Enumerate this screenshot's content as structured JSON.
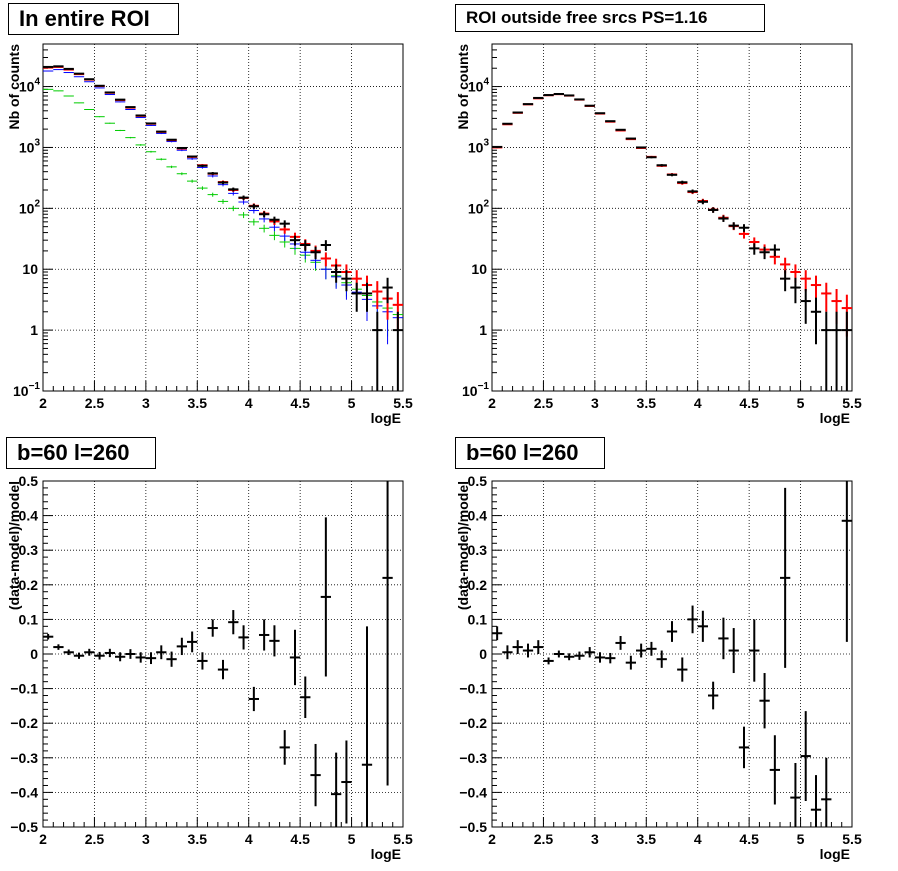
{
  "chart_data": [
    {
      "type": "scatter",
      "title": "In entire ROI",
      "xlabel": "logE",
      "ylabel": "Nb of counts",
      "xlim": [
        2,
        5.5
      ],
      "ylim": [
        0.1,
        50000
      ],
      "ylog": true,
      "grid": true,
      "xticks": [
        "2",
        "2.5",
        "3",
        "3.5",
        "4",
        "4.5",
        "5",
        "5.5"
      ],
      "yticks": [
        {
          "value": 0.1,
          "label": "10",
          "sup": "−1"
        },
        {
          "value": 1,
          "label": "1",
          "sup": ""
        },
        {
          "value": 10,
          "label": "10",
          "sup": ""
        },
        {
          "value": 100,
          "label": "10",
          "sup": "2"
        },
        {
          "value": 1000,
          "label": "10",
          "sup": "3"
        },
        {
          "value": 10000,
          "label": "10",
          "sup": "4"
        }
      ],
      "x": [
        2.05,
        2.15,
        2.25,
        2.35,
        2.45,
        2.55,
        2.65,
        2.75,
        2.85,
        2.95,
        3.05,
        3.15,
        3.25,
        3.35,
        3.45,
        3.55,
        3.65,
        3.75,
        3.85,
        3.95,
        4.05,
        4.15,
        4.25,
        4.35,
        4.45,
        4.55,
        4.65,
        4.75,
        4.85,
        4.95,
        5.05,
        5.15,
        5.25,
        5.35,
        5.45
      ],
      "series": [
        {
          "color": "#00cc00",
          "style": "thin",
          "values": [
            9000,
            8500,
            7000,
            5400,
            4200,
            3200,
            2500,
            1900,
            1450,
            1100,
            850,
            640,
            480,
            370,
            280,
            215,
            168,
            130,
            100,
            78,
            60,
            47,
            36,
            28,
            22,
            17,
            13,
            10,
            7.8,
            6,
            4.7,
            3.7,
            2.9,
            2.3,
            1.8
          ]
        },
        {
          "color": "#0000ff",
          "style": "thin",
          "values": [
            18000,
            19000,
            17000,
            14500,
            12000,
            9500,
            7400,
            5600,
            4200,
            3100,
            2300,
            1700,
            1250,
            900,
            650,
            470,
            340,
            245,
            176,
            127,
            92,
            67,
            49,
            35,
            26,
            19,
            14,
            10,
            7.5,
            5.5,
            4.2,
            3.2,
            2.5,
            2,
            1.6
          ]
        },
        {
          "color": "#ff0000",
          "style": "thick",
          "values": [
            20500,
            21000,
            19000,
            16000,
            13000,
            10200,
            7900,
            6000,
            4500,
            3300,
            2450,
            1800,
            1320,
            960,
            700,
            510,
            370,
            270,
            200,
            148,
            110,
            82,
            61,
            45,
            34,
            26,
            20,
            15,
            11.5,
            9,
            7,
            5.5,
            4.3,
            3.3,
            2.6
          ]
        },
        {
          "color": "#000000",
          "style": "thick",
          "values": [
            21000,
            21500,
            19500,
            16300,
            13200,
            10300,
            8000,
            6100,
            4600,
            3350,
            2480,
            1820,
            1340,
            980,
            710,
            500,
            375,
            265,
            205,
            150,
            108,
            80,
            65,
            56,
            30,
            25,
            19,
            25,
            9,
            7,
            4,
            4,
            1,
            5,
            1
          ]
        }
      ]
    },
    {
      "type": "scatter",
      "title": "ROI outside free srcs PS=1.16",
      "xlabel": "logE",
      "ylabel": "Nb of counts",
      "xlim": [
        2,
        5.5
      ],
      "ylim": [
        0.1,
        50000
      ],
      "ylog": true,
      "grid": true,
      "xticks": [
        "2",
        "2.5",
        "3",
        "3.5",
        "4",
        "4.5",
        "5",
        "5.5"
      ],
      "yticks": [
        {
          "value": 0.1,
          "label": "10",
          "sup": "−1"
        },
        {
          "value": 1,
          "label": "1",
          "sup": ""
        },
        {
          "value": 10,
          "label": "10",
          "sup": ""
        },
        {
          "value": 100,
          "label": "10",
          "sup": "2"
        },
        {
          "value": 1000,
          "label": "10",
          "sup": "3"
        },
        {
          "value": 10000,
          "label": "10",
          "sup": "4"
        }
      ],
      "x": [
        2.05,
        2.15,
        2.25,
        2.35,
        2.45,
        2.55,
        2.65,
        2.75,
        2.85,
        2.95,
        3.05,
        3.15,
        3.25,
        3.35,
        3.45,
        3.55,
        3.65,
        3.75,
        3.85,
        3.95,
        4.05,
        4.15,
        4.25,
        4.35,
        4.45,
        4.55,
        4.65,
        4.75,
        4.85,
        4.95,
        5.05,
        5.15,
        5.25,
        5.35,
        5.45
      ],
      "series": [
        {
          "color": "#ff0000",
          "style": "thick",
          "values": [
            1000,
            2400,
            3700,
            5100,
            6400,
            7200,
            7500,
            7100,
            6100,
            4800,
            3600,
            2650,
            1900,
            1370,
            980,
            700,
            500,
            360,
            260,
            185,
            132,
            95,
            70,
            51,
            38,
            28,
            21,
            16,
            12,
            9,
            7,
            5.5,
            4,
            3,
            2.3
          ]
        },
        {
          "color": "#000000",
          "style": "thick",
          "values": [
            1020,
            2450,
            3750,
            5150,
            6500,
            7250,
            7550,
            7150,
            6150,
            4850,
            3650,
            2700,
            1950,
            1400,
            1000,
            690,
            510,
            355,
            268,
            190,
            128,
            94,
            68,
            52,
            48,
            22,
            19,
            21,
            7,
            5,
            3,
            2,
            1,
            1,
            1
          ]
        }
      ]
    },
    {
      "type": "scatter",
      "title": "b=60 l=260",
      "xlabel": "logE",
      "ylabel": "(data-model)/model",
      "xlim": [
        2,
        5.5
      ],
      "ylim": [
        -0.5,
        0.5
      ],
      "grid": true,
      "xticks": [
        "2",
        "2.5",
        "3",
        "3.5",
        "4",
        "4.5",
        "5",
        "5.5"
      ],
      "yticks": [
        {
          "value": -0.5,
          "label": "−0.5"
        },
        {
          "value": -0.4,
          "label": "−0.4"
        },
        {
          "value": -0.3,
          "label": "−0.3"
        },
        {
          "value": -0.2,
          "label": "−0.2"
        },
        {
          "value": -0.1,
          "label": "−0.1"
        },
        {
          "value": 0,
          "label": "0"
        },
        {
          "value": 0.1,
          "label": "0.1"
        },
        {
          "value": 0.2,
          "label": "0.2"
        },
        {
          "value": 0.3,
          "label": "0.3"
        },
        {
          "value": 0.4,
          "label": "0.4"
        },
        {
          "value": 0.5,
          "label": "0.5"
        }
      ],
      "x": [
        2.05,
        2.15,
        2.25,
        2.35,
        2.45,
        2.55,
        2.65,
        2.75,
        2.85,
        2.95,
        3.05,
        3.15,
        3.25,
        3.35,
        3.45,
        3.55,
        3.65,
        3.75,
        3.85,
        3.95,
        4.05,
        4.15,
        4.25,
        4.35,
        4.45,
        4.55,
        4.65,
        4.75,
        4.85,
        4.95,
        5.05,
        5.15,
        5.25,
        5.35,
        5.45
      ],
      "series": [
        {
          "color": "#000000",
          "style": "thick",
          "values": [
            0.05,
            0.02,
            0.005,
            -0.005,
            0.005,
            -0.005,
            0.003,
            -0.008,
            0.0,
            -0.01,
            -0.012,
            0.005,
            -0.015,
            0.022,
            0.035,
            -0.02,
            0.075,
            -0.045,
            0.092,
            0.048,
            -0.13,
            0.055,
            0.038,
            -0.27,
            -0.01,
            -0.125,
            -0.35,
            0.165,
            -0.405,
            -0.37,
            null,
            -0.32,
            null,
            0.22,
            null
          ],
          "errors": [
            0.008,
            0.008,
            0.008,
            0.009,
            0.01,
            0.011,
            0.012,
            0.013,
            0.014,
            0.015,
            0.017,
            0.02,
            0.022,
            0.025,
            0.03,
            0.025,
            0.025,
            0.028,
            0.035,
            0.035,
            0.035,
            0.045,
            0.045,
            0.05,
            0.08,
            0.06,
            0.09,
            0.23,
            0.12,
            0.12,
            null,
            0.4,
            null,
            0.6,
            null
          ]
        }
      ]
    },
    {
      "type": "scatter",
      "title": "b=60 l=260",
      "xlabel": "logE",
      "ylabel": "(data-model)/model",
      "xlim": [
        2,
        5.5
      ],
      "ylim": [
        -0.5,
        0.5
      ],
      "grid": true,
      "xticks": [
        "2",
        "2.5",
        "3",
        "3.5",
        "4",
        "4.5",
        "5",
        "5.5"
      ],
      "yticks": [
        {
          "value": -0.5,
          "label": "−0.5"
        },
        {
          "value": -0.4,
          "label": "−0.4"
        },
        {
          "value": -0.3,
          "label": "−0.3"
        },
        {
          "value": -0.2,
          "label": "−0.2"
        },
        {
          "value": -0.1,
          "label": "−0.1"
        },
        {
          "value": 0,
          "label": "0"
        },
        {
          "value": 0.1,
          "label": "0.1"
        },
        {
          "value": 0.2,
          "label": "0.2"
        },
        {
          "value": 0.3,
          "label": "0.3"
        },
        {
          "value": 0.4,
          "label": "0.4"
        },
        {
          "value": 0.5,
          "label": "0.5"
        }
      ],
      "x": [
        2.05,
        2.15,
        2.25,
        2.35,
        2.45,
        2.55,
        2.65,
        2.75,
        2.85,
        2.95,
        3.05,
        3.15,
        3.25,
        3.35,
        3.45,
        3.55,
        3.65,
        3.75,
        3.85,
        3.95,
        4.05,
        4.15,
        4.25,
        4.35,
        4.45,
        4.55,
        4.65,
        4.75,
        4.85,
        4.95,
        5.05,
        5.15,
        5.25,
        5.35,
        5.45
      ],
      "series": [
        {
          "color": "#000000",
          "style": "thick",
          "values": [
            0.06,
            0.005,
            0.02,
            0.01,
            0.02,
            -0.02,
            0.0,
            -0.008,
            -0.005,
            0.005,
            -0.01,
            -0.012,
            0.032,
            -0.025,
            0.01,
            0.015,
            -0.015,
            0.065,
            -0.045,
            0.1,
            0.08,
            -0.12,
            0.045,
            0.01,
            -0.27,
            0.01,
            -0.135,
            -0.335,
            0.22,
            -0.415,
            -0.295,
            -0.45,
            -0.42,
            null,
            0.385
          ],
          "errors": [
            0.02,
            0.02,
            0.02,
            0.02,
            0.02,
            0.01,
            0.01,
            0.01,
            0.012,
            0.015,
            0.015,
            0.015,
            0.02,
            0.02,
            0.02,
            0.02,
            0.025,
            0.03,
            0.035,
            0.04,
            0.045,
            0.04,
            0.06,
            0.065,
            0.06,
            0.09,
            0.08,
            0.1,
            0.26,
            0.1,
            0.13,
            0.1,
            0.12,
            null,
            0.35
          ]
        }
      ]
    }
  ]
}
